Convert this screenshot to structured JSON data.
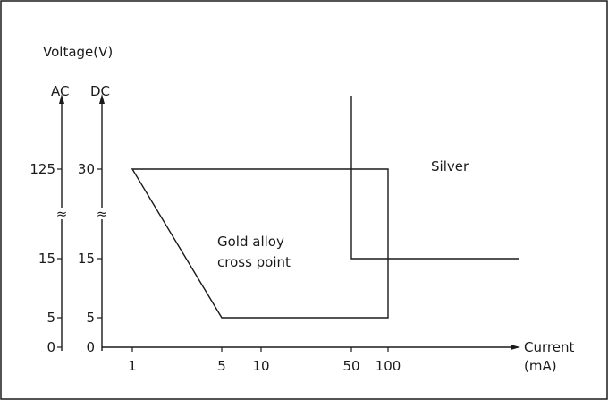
{
  "chart_data": {
    "type": "line",
    "y_title": "Voltage(V)",
    "y_axes": [
      "AC",
      "DC"
    ],
    "x_title_line1": "Current",
    "x_title_line2": "(mA)",
    "x_ticks": [
      "1",
      "5",
      "10",
      "50",
      "100"
    ],
    "ac_ticks": [
      "125",
      "15",
      "5",
      "0"
    ],
    "dc_ticks": [
      "30",
      "15",
      "5",
      "0"
    ],
    "break_symbol": "≈",
    "regions": [
      {
        "name": "Gold alloy cross point",
        "label_line1": "Gold alloy",
        "label_line2": "cross point",
        "boundary": [
          {
            "current_mA": 1,
            "voltage_DC": 30
          },
          {
            "current_mA": 100,
            "voltage_DC": 30
          },
          {
            "current_mA": 100,
            "voltage_DC": 5
          },
          {
            "current_mA": 5,
            "voltage_DC": 5
          },
          {
            "current_mA": 1,
            "voltage_DC": 30
          }
        ]
      },
      {
        "name": "Silver",
        "label": "Silver",
        "min_current_mA": 50,
        "min_voltage_DC": 15
      }
    ]
  }
}
